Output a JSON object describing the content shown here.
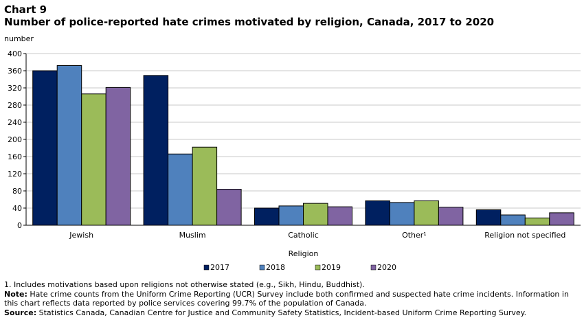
{
  "header": {
    "chart_number": "Chart 9",
    "title": "Number of police-reported hate crimes motivated by religion, Canada, 2017 to 2020"
  },
  "chart_data": {
    "type": "bar",
    "title": "Number of police-reported hate crimes motivated by religion, Canada, 2017 to 2020",
    "xlabel": "Religion",
    "ylabel": "number",
    "ylim": [
      0,
      400
    ],
    "yticks": [
      0,
      40,
      80,
      120,
      160,
      200,
      240,
      280,
      320,
      360,
      400
    ],
    "grid": true,
    "legend_position": "bottom",
    "categories": [
      "Jewish",
      "Muslim",
      "Catholic",
      "Other¹",
      "Religion not specified"
    ],
    "series": [
      {
        "name": "2017",
        "color": "#002060",
        "values": [
          360,
          349,
          40,
          57,
          36
        ]
      },
      {
        "name": "2018",
        "color": "#4f81bd",
        "values": [
          372,
          166,
          45,
          53,
          24
        ]
      },
      {
        "name": "2019",
        "color": "#9bbb59",
        "values": [
          306,
          182,
          51,
          57,
          17
        ]
      },
      {
        "name": "2020",
        "color": "#8064a2",
        "values": [
          321,
          84,
          43,
          42,
          29
        ]
      }
    ]
  },
  "footnotes": {
    "note1": "1. Includes motivations based upon religions not otherwise stated (e.g., Sikh, Hindu, Buddhist).",
    "note_label": "Note:",
    "note_text": "Hate crime counts from the Uniform Crime Reporting (UCR) Survey include both confirmed and suspected hate crime incidents. Information in this chart reflects data reported by police services covering 99.7% of the population of Canada.",
    "source_label": "Source:",
    "source_text": "Statistics Canada, Canadian Centre for Justice and Community Safety Statistics, Incident-based Uniform Crime Reporting Survey."
  }
}
